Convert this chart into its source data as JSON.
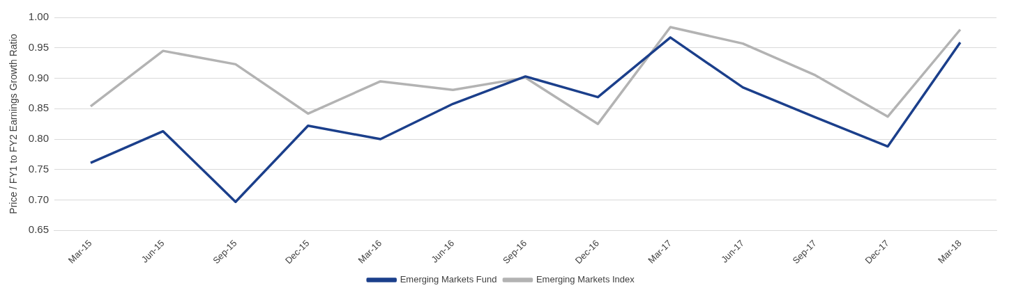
{
  "chart_data": {
    "type": "line",
    "ylabel": "Price / FY1 to FY2 Earnings Growth Ratio",
    "categories": [
      "Mar-15",
      "Jun-15",
      "Sep-15",
      "Dec-15",
      "Mar-16",
      "Jun-16",
      "Sep-16",
      "Dec-16",
      "Mar-17",
      "Jun-17",
      "Sep-17",
      "Dec-17",
      "Mar-18"
    ],
    "series": [
      {
        "name": "Emerging Markets Fund",
        "color": "#1b3f8b",
        "values": [
          0.761,
          0.813,
          0.697,
          0.822,
          0.8,
          0.858,
          0.903,
          0.869,
          0.967,
          0.885,
          0.836,
          0.788,
          0.959
        ]
      },
      {
        "name": "Emerging Markets Index",
        "color": "#b3b3b3",
        "values": [
          0.854,
          0.945,
          0.923,
          0.842,
          0.895,
          0.881,
          0.901,
          0.825,
          0.984,
          0.957,
          0.905,
          0.837,
          0.98
        ]
      }
    ],
    "ylim": [
      0.65,
      1.0
    ],
    "yticks": [
      {
        "value": 0.65,
        "label": "0.65"
      },
      {
        "value": 0.7,
        "label": "0.70"
      },
      {
        "value": 0.75,
        "label": "0.75"
      },
      {
        "value": 0.8,
        "label": "0.80"
      },
      {
        "value": 0.85,
        "label": "0.85"
      },
      {
        "value": 0.9,
        "label": "0.90"
      },
      {
        "value": 0.95,
        "label": "0.95"
      },
      {
        "value": 1.0,
        "label": "1.00"
      }
    ],
    "grid": "y",
    "legend": "bottom",
    "marker": "none",
    "line_style": "solid"
  }
}
